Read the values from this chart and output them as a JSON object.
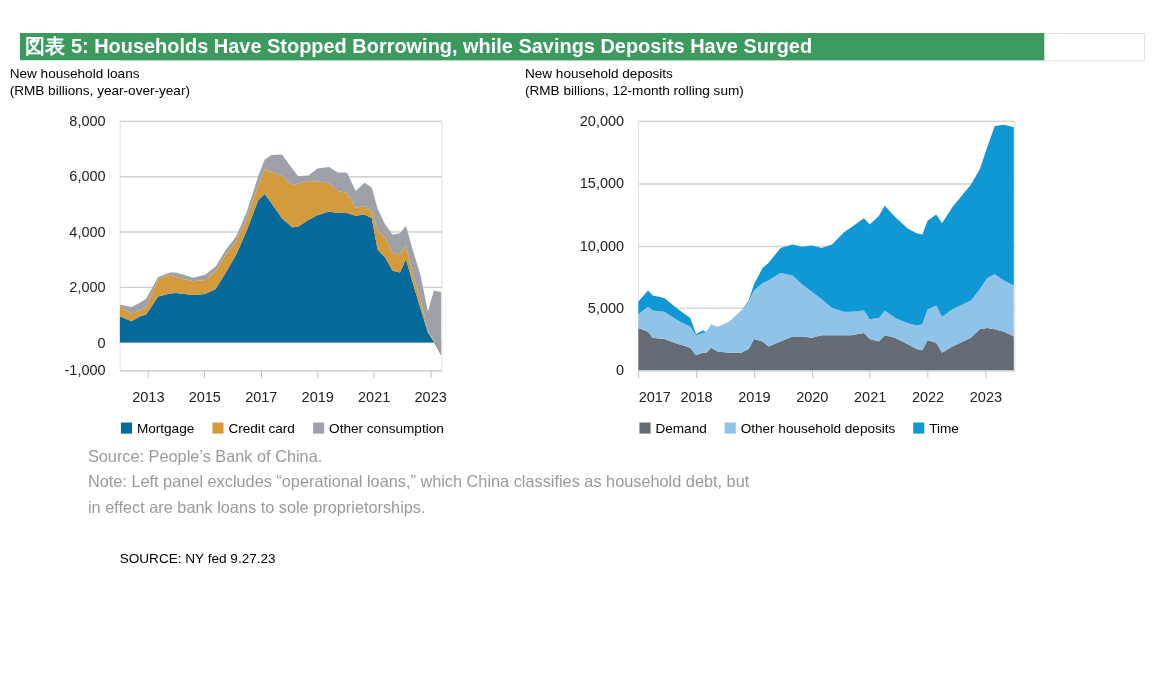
{
  "chart_data": [
    {
      "type": "other",
      "title": "図表 5: Households Have Stopped Borrowing, while Savings Deposits Have Surged",
      "annotations": [
        "Source: People’s Bank of China.",
        "Note: Left panel excludes “operational loans,” which China classifies as household debt, but in effect are bank loans to sole proprietorships.",
        "SOURCE: NY fed 9.27.23"
      ]
    },
    {
      "type": "area",
      "stacked": true,
      "title": "New household loans",
      "subtitle": "(RMB billions, year-over-year)",
      "legend": "bottom",
      "grid": "y",
      "xlim": [
        2012.0,
        2023.4
      ],
      "xticks": [
        2013,
        2015,
        2017,
        2019,
        2021,
        2023
      ],
      "ylim": [
        -1000,
        8000
      ],
      "yticks": [
        {
          "value": -1000,
          "label": "-1,000"
        },
        0,
        {
          "value": 2000,
          "label": "2,000"
        },
        {
          "value": 4000,
          "label": "4,000"
        },
        {
          "value": 6000,
          "label": "6,000"
        },
        {
          "value": 8000,
          "label": "8,000"
        }
      ],
      "x": [
        2012.0,
        2012.42,
        2012.73,
        2012.94,
        2013.36,
        2013.78,
        2013.99,
        2014.61,
        2015.03,
        2015.4,
        2015.76,
        2016.13,
        2016.5,
        2016.91,
        2017.14,
        2017.38,
        2017.75,
        2018.11,
        2018.32,
        2018.69,
        2019.0,
        2019.42,
        2019.73,
        2020.05,
        2020.36,
        2020.67,
        2020.93,
        2021.14,
        2021.4,
        2021.67,
        2021.93,
        2022.14,
        2022.4,
        2022.66,
        2022.92,
        2023.13,
        2023.39
      ],
      "series": [
        {
          "name": "Mortgage",
          "color": "#066a9a",
          "values": [
            950,
            770,
            950,
            1010,
            1660,
            1770,
            1790,
            1720,
            1750,
            1930,
            2530,
            3180,
            4050,
            5140,
            5360,
            5030,
            4490,
            4160,
            4180,
            4430,
            4600,
            4730,
            4680,
            4680,
            4580,
            4620,
            4490,
            3350,
            3080,
            2590,
            2530,
            3020,
            2100,
            1230,
            360,
            30,
            -460
          ]
        },
        {
          "name": "Credit card",
          "color": "#d39b3c",
          "values": [
            370,
            270,
            220,
            270,
            630,
            680,
            580,
            490,
            510,
            660,
            650,
            490,
            440,
            540,
            890,
            1140,
            1520,
            1520,
            1560,
            1390,
            1220,
            1010,
            790,
            730,
            290,
            300,
            270,
            700,
            700,
            650,
            650,
            490,
            320,
            320,
            50,
            60,
            0
          ]
        },
        {
          "name": "Other consumption",
          "color": "#9ea2a8",
          "values": [
            50,
            240,
            280,
            300,
            80,
            80,
            160,
            130,
            190,
            160,
            170,
            170,
            220,
            330,
            360,
            600,
            780,
            600,
            270,
            210,
            460,
            600,
            670,
            730,
            600,
            850,
            840,
            770,
            490,
            650,
            770,
            710,
            870,
            870,
            710,
            1790,
            2290
          ]
        }
      ]
    },
    {
      "type": "area",
      "stacked": true,
      "title": "New household deposits",
      "subtitle": "(RMB billions, 12-month rolling sum)",
      "legend": "bottom",
      "grid": "y",
      "xlim": [
        2017.0,
        2023.5
      ],
      "xticks": [
        2017,
        2018,
        2019,
        2020,
        2021,
        2022,
        2023
      ],
      "ylim": [
        0,
        20000
      ],
      "yticks": [
        0,
        {
          "value": 5000,
          "label": "5,000"
        },
        {
          "value": 10000,
          "label": "10,000"
        },
        {
          "value": 15000,
          "label": "15,000"
        },
        {
          "value": 20000,
          "label": "20,000"
        }
      ],
      "x": [
        2017.0,
        2017.17,
        2017.25,
        2017.45,
        2017.69,
        2017.9,
        2018.0,
        2018.11,
        2018.18,
        2018.26,
        2018.37,
        2018.57,
        2018.78,
        2018.91,
        2019.0,
        2019.15,
        2019.25,
        2019.46,
        2019.67,
        2019.83,
        2020.0,
        2020.17,
        2020.35,
        2020.56,
        2020.69,
        2020.9,
        2021.0,
        2021.16,
        2021.26,
        2021.44,
        2021.65,
        2021.81,
        2021.91,
        2022.0,
        2022.15,
        2022.25,
        2022.43,
        2022.75,
        2022.9,
        2023.03,
        2023.16,
        2023.32,
        2023.49
      ],
      "series": [
        {
          "name": "Demand",
          "color": "#646b75",
          "values": [
            3400,
            3100,
            2600,
            2500,
            2100,
            1800,
            1200,
            1400,
            1400,
            1800,
            1500,
            1400,
            1400,
            1700,
            2500,
            2300,
            1900,
            2300,
            2700,
            2700,
            2600,
            2800,
            2800,
            2800,
            2800,
            3000,
            2500,
            2300,
            2800,
            2600,
            2100,
            1700,
            1600,
            2400,
            2200,
            1400,
            1900,
            2600,
            3300,
            3400,
            3300,
            3100,
            2700
          ]
        },
        {
          "name": "Other household deposits",
          "color": "#8fc3e8",
          "values": [
            1100,
            2000,
            2200,
            2200,
            1900,
            1700,
            1600,
            1600,
            1700,
            1900,
            2000,
            2500,
            3400,
            3800,
            3900,
            4700,
            5300,
            5500,
            4900,
            4200,
            3700,
            2900,
            2200,
            1900,
            1900,
            1800,
            1600,
            1900,
            2000,
            1600,
            1700,
            1900,
            2100,
            2500,
            3000,
            2900,
            3000,
            3000,
            3200,
            4000,
            4400,
            4100,
            4100
          ]
        },
        {
          "name": "Time",
          "color": "#0f98d4",
          "values": [
            1000,
            1300,
            1200,
            1100,
            900,
            700,
            100,
            200,
            0,
            0,
            0,
            0,
            0,
            100,
            500,
            1200,
            1400,
            2000,
            2500,
            3000,
            3700,
            4100,
            5100,
            6400,
            6800,
            7400,
            7600,
            8200,
            8400,
            8100,
            7600,
            7400,
            7200,
            7100,
            7300,
            7500,
            8200,
            9300,
            9600,
            10500,
            11900,
            12500,
            12700
          ]
        }
      ]
    }
  ]
}
